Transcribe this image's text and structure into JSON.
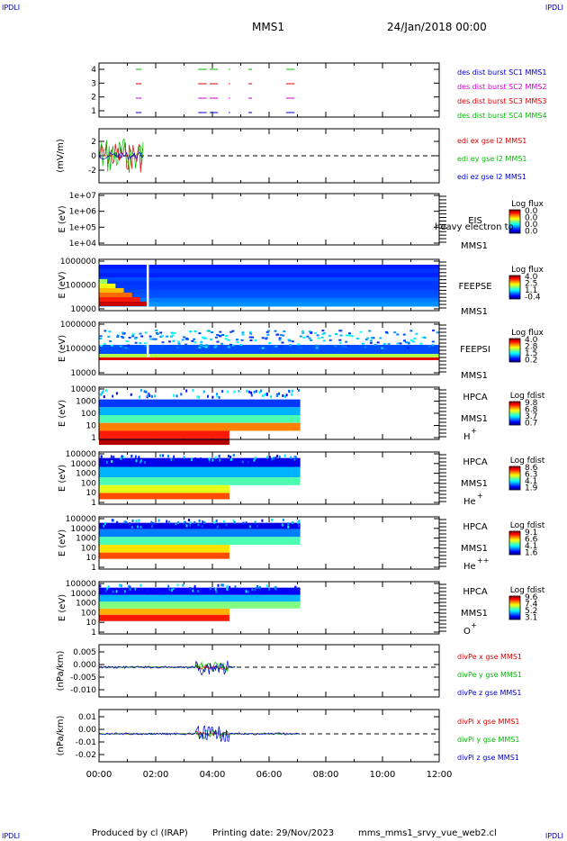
{
  "header": {
    "corner_tl": "IPDLI",
    "corner_tr": "IPDLI",
    "corner_bl": "IPDLI",
    "corner_br": "IPDLI",
    "title": "MMS1",
    "date": "24/Jan/2018 00:00"
  },
  "footer": {
    "produced": "Produced by cl (IRAP)",
    "printing": "Printing date: 29/Nov/2023",
    "file": "mms_mms1_srvy_vue_web2.cl"
  },
  "colors": {
    "blue": "#0000cc",
    "magenta": "#cc00cc",
    "red": "#dd0000",
    "green": "#00bb00"
  },
  "chart_data": {
    "type": "heatmap",
    "x_axis": {
      "range": [
        "00:00",
        "12:00"
      ],
      "tick_labels": [
        "00:00",
        "02:00",
        "04:00",
        "06:00",
        "08:00",
        "10:00",
        "12:00"
      ]
    },
    "panels": [
      {
        "id": "burst",
        "kind": "segments",
        "ylabel": "",
        "ticks": [
          "4",
          "3",
          "2",
          "1"
        ],
        "legend": [
          {
            "text": "des dist burst SC1 MMS1",
            "color": "#0000cc"
          },
          {
            "text": "des dist burst SC2 MMS2",
            "color": "#cc00cc"
          },
          {
            "text": "des dist burst SC3 MMS3",
            "color": "#dd0000"
          },
          {
            "text": "des dist burst SC4 MMS4",
            "color": "#00bb00"
          }
        ]
      },
      {
        "id": "edi",
        "kind": "line",
        "ylabel": "(mV/m)",
        "ticks": [
          "2",
          "0",
          "-2"
        ],
        "legend": [
          {
            "text": "edi ex gse l2 MMS1",
            "color": "#dd0000"
          },
          {
            "text": "edi ey gse l2 MMS1",
            "color": "#00bb00"
          },
          {
            "text": "edi ez gse l2 MMS1",
            "color": "#0000cc"
          }
        ]
      },
      {
        "id": "eis",
        "kind": "spectrogram",
        "ylabel": "E (eV)",
        "ticks": [
          "1e+07",
          "1e+06",
          "1e+05",
          "1e+04"
        ],
        "label_top": "EIS",
        "label_overlap": "heavy electron to",
        "label_bottom": "MMS1",
        "colorbar_title": "Log flux",
        "colorbar_ticks": [
          "0.0",
          "0.0",
          "0.0",
          "0.0"
        ]
      },
      {
        "id": "feepse",
        "kind": "spectrogram",
        "ylabel": "E (eV)",
        "ticks": [
          "1000000",
          "100000",
          "10000"
        ],
        "label_top": "FEEPSE",
        "label_bottom": "MMS1",
        "colorbar_title": "Log flux",
        "colorbar_ticks": [
          "4.0",
          "2.5",
          "1.1",
          "-0.4"
        ]
      },
      {
        "id": "feepsi",
        "kind": "spectrogram",
        "ylabel": "E (eV)",
        "ticks": [
          "1000000",
          "100000",
          "10000"
        ],
        "label_top": "FEEPSI",
        "label_bottom": "MMS1",
        "colorbar_title": "Log flux",
        "colorbar_ticks": [
          "4.0",
          "2.8",
          "1.5",
          "0.2"
        ]
      },
      {
        "id": "hpca_h",
        "kind": "spectrogram",
        "ylabel": "E (eV)",
        "ticks": [
          "10000",
          "1000",
          "100",
          "10",
          "1"
        ],
        "label_top": "HPCA",
        "label_mid": "MMS1",
        "species": "H",
        "species_sup": "+",
        "colorbar_title": "Log fdist",
        "colorbar_ticks": [
          "9.8",
          "6.8",
          "3.7",
          "0.7"
        ]
      },
      {
        "id": "hpca_he",
        "kind": "spectrogram",
        "ylabel": "E (eV)",
        "ticks": [
          "100000",
          "10000",
          "1000",
          "100",
          "10",
          "1"
        ],
        "label_top": "HPCA",
        "label_mid": "MMS1",
        "species": "He",
        "species_sup": "+",
        "colorbar_title": "Log fdist",
        "colorbar_ticks": [
          "8.6",
          "6.3",
          "4.1",
          "1.9"
        ]
      },
      {
        "id": "hpca_hepp",
        "kind": "spectrogram",
        "ylabel": "E (eV)",
        "ticks": [
          "100000",
          "10000",
          "1000",
          "100",
          "10",
          "1"
        ],
        "label_top": "HPCA",
        "label_mid": "MMS1",
        "species": "He",
        "species_sup": "++",
        "colorbar_title": "Log fdist",
        "colorbar_ticks": [
          "9.1",
          "6.6",
          "4.1",
          "1.6"
        ]
      },
      {
        "id": "hpca_o",
        "kind": "spectrogram",
        "ylabel": "E (eV)",
        "ticks": [
          "100000",
          "10000",
          "1000",
          "100",
          "10",
          "1"
        ],
        "label_top": "HPCA",
        "label_mid": "MMS1",
        "species": "O",
        "species_sup": "+",
        "colorbar_title": "Log fdist",
        "colorbar_ticks": [
          "9.6",
          "7.4",
          "5.2",
          "3.1"
        ]
      },
      {
        "id": "divpe",
        "kind": "line",
        "ylabel": "(nPa/km)",
        "ticks": [
          "0.005",
          "0.000",
          "-0.005",
          "-0.010"
        ],
        "legend": [
          {
            "text": "divPe x gse MMS1",
            "color": "#dd0000"
          },
          {
            "text": "divPe y gse MMS1",
            "color": "#00bb00"
          },
          {
            "text": "divPe z gse MMS1",
            "color": "#0000cc"
          }
        ]
      },
      {
        "id": "divpi",
        "kind": "line",
        "ylabel": "(nPa/km)",
        "ticks": [
          "0.01",
          "0.00",
          "-0.01",
          "-0.02"
        ],
        "legend": [
          {
            "text": "divPi x gse MMS1",
            "color": "#dd0000"
          },
          {
            "text": "divPi y gse MMS1",
            "color": "#00bb00"
          },
          {
            "text": "divPi z gse MMS1",
            "color": "#0000cc"
          }
        ]
      }
    ]
  }
}
